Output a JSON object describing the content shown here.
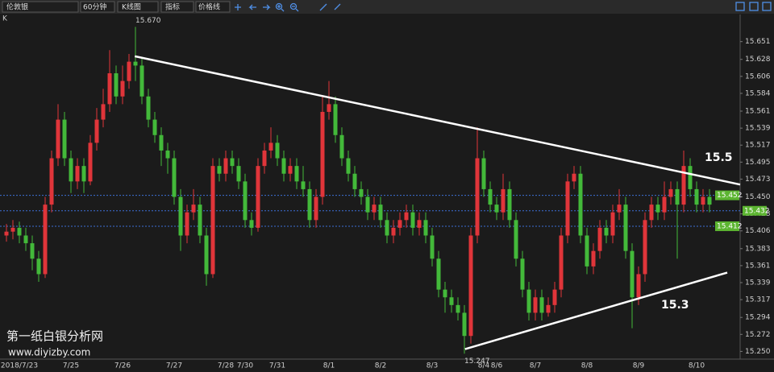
{
  "toolbar": {
    "symbol": "伦敦银",
    "period": "60分钟",
    "chart_kind": "K线图",
    "indicator": "指标",
    "price_line": "价格线"
  },
  "panel_label": "K",
  "watermark": {
    "name": "第一纸白银分析网",
    "url": "www.diyizby.com"
  },
  "chart_data": {
    "type": "candlestick",
    "categories": [
      null,
      null,
      "2018/7/23",
      null,
      null,
      null,
      null,
      null,
      null,
      null,
      "7/25",
      null,
      null,
      null,
      null,
      null,
      null,
      null,
      "7/26",
      null,
      null,
      null,
      null,
      null,
      null,
      null,
      "7/27",
      null,
      null,
      null,
      null,
      null,
      null,
      null,
      "7/28",
      null,
      null,
      "7/30",
      null,
      null,
      null,
      null,
      "7/31",
      null,
      null,
      null,
      null,
      null,
      null,
      null,
      "8/1",
      null,
      null,
      null,
      null,
      null,
      null,
      null,
      "8/2",
      null,
      null,
      null,
      null,
      null,
      null,
      null,
      "8/3",
      null,
      null,
      null,
      null,
      null,
      null,
      null,
      "8/4",
      null,
      "8/6",
      null,
      null,
      null,
      null,
      null,
      "8/7",
      null,
      null,
      null,
      null,
      null,
      null,
      null,
      "8/8",
      null,
      null,
      null,
      null,
      null,
      null,
      null,
      "8/9",
      null,
      null,
      null,
      null,
      null,
      null,
      null,
      null,
      "8/10",
      null,
      null
    ],
    "open": [
      15.4,
      15.405,
      15.41,
      15.4,
      15.39,
      15.37,
      15.35,
      15.44,
      15.5,
      15.55,
      15.5,
      15.47,
      15.49,
      15.47,
      15.52,
      15.55,
      15.57,
      15.61,
      15.58,
      15.6,
      15.625,
      15.62,
      15.58,
      15.55,
      15.53,
      15.51,
      15.5,
      15.45,
      15.4,
      15.43,
      15.44,
      15.4,
      15.35,
      15.49,
      15.48,
      15.5,
      15.49,
      15.47,
      15.42,
      15.41,
      15.49,
      15.51,
      15.52,
      15.5,
      15.48,
      15.49,
      15.47,
      15.46,
      15.42,
      15.45,
      15.56,
      15.57,
      15.53,
      15.5,
      15.48,
      15.46,
      15.45,
      15.43,
      15.44,
      15.42,
      15.4,
      15.41,
      15.42,
      15.43,
      15.41,
      15.42,
      15.4,
      15.37,
      15.33,
      15.32,
      15.31,
      15.3,
      15.27,
      15.4,
      15.5,
      15.46,
      15.44,
      15.43,
      15.46,
      15.42,
      15.37,
      15.33,
      15.3,
      15.32,
      15.3,
      15.31,
      15.33,
      15.4,
      15.47,
      15.48,
      15.4,
      15.36,
      15.38,
      15.41,
      15.4,
      15.43,
      15.44,
      15.38,
      15.32,
      15.35,
      15.42,
      15.44,
      15.43,
      15.45,
      15.46,
      15.44,
      15.49,
      15.46,
      15.44,
      15.45
    ],
    "high": [
      15.415,
      15.42,
      15.418,
      15.41,
      15.4,
      15.38,
      15.45,
      15.51,
      15.57,
      15.56,
      15.51,
      15.5,
      15.5,
      15.53,
      15.565,
      15.59,
      15.64,
      15.62,
      15.62,
      15.635,
      15.67,
      15.63,
      15.59,
      15.56,
      15.54,
      15.52,
      15.51,
      15.46,
      15.44,
      15.46,
      15.45,
      15.41,
      15.5,
      15.5,
      15.51,
      15.51,
      15.5,
      15.48,
      15.43,
      15.5,
      15.52,
      15.54,
      15.53,
      15.51,
      15.5,
      15.5,
      15.49,
      15.47,
      15.46,
      15.58,
      15.6,
      15.58,
      15.54,
      15.51,
      15.49,
      15.47,
      15.46,
      15.45,
      15.45,
      15.43,
      15.42,
      15.43,
      15.44,
      15.44,
      15.43,
      15.43,
      15.41,
      15.38,
      15.34,
      15.33,
      15.32,
      15.31,
      15.41,
      15.54,
      15.51,
      15.47,
      15.45,
      15.48,
      15.47,
      15.43,
      15.38,
      15.34,
      15.33,
      15.33,
      15.32,
      15.34,
      15.41,
      15.48,
      15.49,
      15.49,
      15.41,
      15.39,
      15.42,
      15.42,
      15.44,
      15.46,
      15.45,
      15.39,
      15.36,
      15.43,
      15.45,
      15.45,
      15.47,
      15.47,
      15.47,
      15.51,
      15.5,
      15.47,
      15.46,
      15.46
    ],
    "low": [
      15.392,
      15.395,
      15.39,
      15.38,
      15.355,
      15.34,
      15.345,
      15.43,
      15.49,
      15.49,
      15.455,
      15.46,
      15.455,
      15.465,
      15.51,
      15.54,
      15.56,
      15.57,
      15.57,
      15.59,
      15.6,
      15.57,
      15.54,
      15.52,
      15.49,
      15.48,
      15.44,
      15.38,
      15.39,
      15.42,
      15.39,
      15.335,
      15.345,
      15.47,
      15.47,
      15.48,
      15.46,
      15.41,
      15.4,
      15.405,
      15.48,
      15.5,
      15.49,
      15.47,
      15.47,
      15.46,
      15.45,
      15.41,
      15.41,
      15.44,
      15.55,
      15.52,
      15.49,
      15.47,
      15.45,
      15.44,
      15.42,
      15.42,
      15.41,
      15.39,
      15.39,
      15.4,
      15.41,
      15.4,
      15.4,
      15.39,
      15.36,
      15.32,
      15.3,
      15.3,
      15.29,
      15.247,
      15.26,
      15.39,
      15.45,
      15.43,
      15.42,
      15.42,
      15.41,
      15.36,
      15.32,
      15.29,
      15.29,
      15.29,
      15.295,
      15.3,
      15.32,
      15.39,
      15.46,
      15.39,
      15.35,
      15.35,
      15.37,
      15.39,
      15.39,
      15.42,
      15.37,
      15.28,
      15.31,
      15.34,
      15.41,
      15.42,
      15.42,
      15.44,
      15.37,
      15.43,
      15.45,
      15.43,
      15.43,
      15.43
    ],
    "close": [
      15.405,
      15.41,
      15.4,
      15.39,
      15.37,
      15.35,
      15.44,
      15.5,
      15.55,
      15.5,
      15.47,
      15.49,
      15.47,
      15.52,
      15.55,
      15.57,
      15.61,
      15.58,
      15.6,
      15.625,
      15.62,
      15.58,
      15.55,
      15.53,
      15.51,
      15.5,
      15.45,
      15.4,
      15.43,
      15.44,
      15.4,
      15.35,
      15.49,
      15.48,
      15.5,
      15.49,
      15.47,
      15.42,
      15.41,
      15.49,
      15.51,
      15.52,
      15.5,
      15.48,
      15.49,
      15.47,
      15.46,
      15.42,
      15.45,
      15.56,
      15.57,
      15.53,
      15.5,
      15.48,
      15.46,
      15.45,
      15.43,
      15.44,
      15.42,
      15.4,
      15.41,
      15.42,
      15.43,
      15.41,
      15.42,
      15.4,
      15.37,
      15.33,
      15.32,
      15.31,
      15.3,
      15.27,
      15.4,
      15.5,
      15.46,
      15.44,
      15.43,
      15.46,
      15.42,
      15.37,
      15.33,
      15.3,
      15.32,
      15.3,
      15.31,
      15.33,
      15.4,
      15.47,
      15.48,
      15.4,
      15.36,
      15.38,
      15.41,
      15.4,
      15.43,
      15.44,
      15.38,
      15.32,
      15.35,
      15.42,
      15.44,
      15.43,
      15.45,
      15.46,
      15.44,
      15.49,
      15.46,
      15.44,
      15.45,
      15.44
    ],
    "up_color": "#e0353a",
    "down_color": "#43b93a",
    "high_label": "15.670",
    "low_label": "15.247",
    "ylim": [
      15.24,
      15.684
    ],
    "yticks": [
      {
        "value": 15.25,
        "label": "15.250"
      },
      15.272,
      15.294,
      15.317,
      15.339,
      15.361,
      15.383,
      15.406,
      15.428,
      {
        "value": 15.45,
        "label": "15.450"
      },
      15.473,
      15.495,
      15.517,
      15.539,
      15.561,
      15.584,
      15.606,
      15.628,
      15.651
    ],
    "price_lines": [
      {
        "value": 15.452,
        "color": "#3d6fd6"
      },
      {
        "value": 15.432,
        "color": "#3d6fd6"
      },
      {
        "value": 15.412,
        "color": "#3d6fd6"
      }
    ],
    "price_label_color": "#5cb531",
    "trendlines": [
      {
        "x": [
          19.9,
          113.75
        ],
        "y": [
          15.632,
          15.466
        ],
        "color": "#ffffff"
      },
      {
        "x": [
          71.1,
          111.75
        ],
        "y": [
          15.253,
          15.352
        ],
        "color": "#ffffff"
      }
    ],
    "annotations": [
      "15.5",
      "15.3"
    ]
  }
}
